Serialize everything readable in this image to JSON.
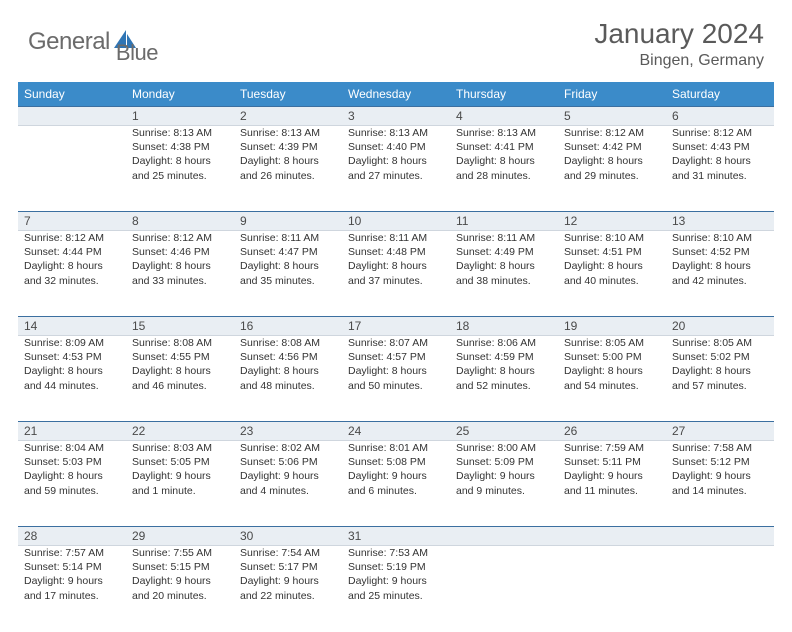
{
  "brand": {
    "name_part1": "General",
    "name_part2": "Blue"
  },
  "title": "January 2024",
  "location": "Bingen, Germany",
  "colors": {
    "header_bg": "#3b8bc9",
    "header_text": "#ffffff",
    "row_bg": "#e9eef3",
    "row_border_top": "#3b6fa0",
    "text": "#333333",
    "title_text": "#5a5a5a",
    "logo_text": "#6b6b6b",
    "logo_blue": "#2f75b5"
  },
  "typography": {
    "title_fontsize": 28,
    "location_fontsize": 16,
    "dayheader_fontsize": 12,
    "cell_fontsize": 10.5
  },
  "day_headers": [
    "Sunday",
    "Monday",
    "Tuesday",
    "Wednesday",
    "Thursday",
    "Friday",
    "Saturday"
  ],
  "weeks": [
    {
      "nums": [
        "",
        "1",
        "2",
        "3",
        "4",
        "5",
        "6"
      ],
      "cells": [
        null,
        {
          "sunrise": "Sunrise: 8:13 AM",
          "sunset": "Sunset: 4:38 PM",
          "daylight": "Daylight: 8 hours and 25 minutes."
        },
        {
          "sunrise": "Sunrise: 8:13 AM",
          "sunset": "Sunset: 4:39 PM",
          "daylight": "Daylight: 8 hours and 26 minutes."
        },
        {
          "sunrise": "Sunrise: 8:13 AM",
          "sunset": "Sunset: 4:40 PM",
          "daylight": "Daylight: 8 hours and 27 minutes."
        },
        {
          "sunrise": "Sunrise: 8:13 AM",
          "sunset": "Sunset: 4:41 PM",
          "daylight": "Daylight: 8 hours and 28 minutes."
        },
        {
          "sunrise": "Sunrise: 8:12 AM",
          "sunset": "Sunset: 4:42 PM",
          "daylight": "Daylight: 8 hours and 29 minutes."
        },
        {
          "sunrise": "Sunrise: 8:12 AM",
          "sunset": "Sunset: 4:43 PM",
          "daylight": "Daylight: 8 hours and 31 minutes."
        }
      ]
    },
    {
      "nums": [
        "7",
        "8",
        "9",
        "10",
        "11",
        "12",
        "13"
      ],
      "cells": [
        {
          "sunrise": "Sunrise: 8:12 AM",
          "sunset": "Sunset: 4:44 PM",
          "daylight": "Daylight: 8 hours and 32 minutes."
        },
        {
          "sunrise": "Sunrise: 8:12 AM",
          "sunset": "Sunset: 4:46 PM",
          "daylight": "Daylight: 8 hours and 33 minutes."
        },
        {
          "sunrise": "Sunrise: 8:11 AM",
          "sunset": "Sunset: 4:47 PM",
          "daylight": "Daylight: 8 hours and 35 minutes."
        },
        {
          "sunrise": "Sunrise: 8:11 AM",
          "sunset": "Sunset: 4:48 PM",
          "daylight": "Daylight: 8 hours and 37 minutes."
        },
        {
          "sunrise": "Sunrise: 8:11 AM",
          "sunset": "Sunset: 4:49 PM",
          "daylight": "Daylight: 8 hours and 38 minutes."
        },
        {
          "sunrise": "Sunrise: 8:10 AM",
          "sunset": "Sunset: 4:51 PM",
          "daylight": "Daylight: 8 hours and 40 minutes."
        },
        {
          "sunrise": "Sunrise: 8:10 AM",
          "sunset": "Sunset: 4:52 PM",
          "daylight": "Daylight: 8 hours and 42 minutes."
        }
      ]
    },
    {
      "nums": [
        "14",
        "15",
        "16",
        "17",
        "18",
        "19",
        "20"
      ],
      "cells": [
        {
          "sunrise": "Sunrise: 8:09 AM",
          "sunset": "Sunset: 4:53 PM",
          "daylight": "Daylight: 8 hours and 44 minutes."
        },
        {
          "sunrise": "Sunrise: 8:08 AM",
          "sunset": "Sunset: 4:55 PM",
          "daylight": "Daylight: 8 hours and 46 minutes."
        },
        {
          "sunrise": "Sunrise: 8:08 AM",
          "sunset": "Sunset: 4:56 PM",
          "daylight": "Daylight: 8 hours and 48 minutes."
        },
        {
          "sunrise": "Sunrise: 8:07 AM",
          "sunset": "Sunset: 4:57 PM",
          "daylight": "Daylight: 8 hours and 50 minutes."
        },
        {
          "sunrise": "Sunrise: 8:06 AM",
          "sunset": "Sunset: 4:59 PM",
          "daylight": "Daylight: 8 hours and 52 minutes."
        },
        {
          "sunrise": "Sunrise: 8:05 AM",
          "sunset": "Sunset: 5:00 PM",
          "daylight": "Daylight: 8 hours and 54 minutes."
        },
        {
          "sunrise": "Sunrise: 8:05 AM",
          "sunset": "Sunset: 5:02 PM",
          "daylight": "Daylight: 8 hours and 57 minutes."
        }
      ]
    },
    {
      "nums": [
        "21",
        "22",
        "23",
        "24",
        "25",
        "26",
        "27"
      ],
      "cells": [
        {
          "sunrise": "Sunrise: 8:04 AM",
          "sunset": "Sunset: 5:03 PM",
          "daylight": "Daylight: 8 hours and 59 minutes."
        },
        {
          "sunrise": "Sunrise: 8:03 AM",
          "sunset": "Sunset: 5:05 PM",
          "daylight": "Daylight: 9 hours and 1 minute."
        },
        {
          "sunrise": "Sunrise: 8:02 AM",
          "sunset": "Sunset: 5:06 PM",
          "daylight": "Daylight: 9 hours and 4 minutes."
        },
        {
          "sunrise": "Sunrise: 8:01 AM",
          "sunset": "Sunset: 5:08 PM",
          "daylight": "Daylight: 9 hours and 6 minutes."
        },
        {
          "sunrise": "Sunrise: 8:00 AM",
          "sunset": "Sunset: 5:09 PM",
          "daylight": "Daylight: 9 hours and 9 minutes."
        },
        {
          "sunrise": "Sunrise: 7:59 AM",
          "sunset": "Sunset: 5:11 PM",
          "daylight": "Daylight: 9 hours and 11 minutes."
        },
        {
          "sunrise": "Sunrise: 7:58 AM",
          "sunset": "Sunset: 5:12 PM",
          "daylight": "Daylight: 9 hours and 14 minutes."
        }
      ]
    },
    {
      "nums": [
        "28",
        "29",
        "30",
        "31",
        "",
        "",
        ""
      ],
      "cells": [
        {
          "sunrise": "Sunrise: 7:57 AM",
          "sunset": "Sunset: 5:14 PM",
          "daylight": "Daylight: 9 hours and 17 minutes."
        },
        {
          "sunrise": "Sunrise: 7:55 AM",
          "sunset": "Sunset: 5:15 PM",
          "daylight": "Daylight: 9 hours and 20 minutes."
        },
        {
          "sunrise": "Sunrise: 7:54 AM",
          "sunset": "Sunset: 5:17 PM",
          "daylight": "Daylight: 9 hours and 22 minutes."
        },
        {
          "sunrise": "Sunrise: 7:53 AM",
          "sunset": "Sunset: 5:19 PM",
          "daylight": "Daylight: 9 hours and 25 minutes."
        },
        null,
        null,
        null
      ]
    }
  ]
}
